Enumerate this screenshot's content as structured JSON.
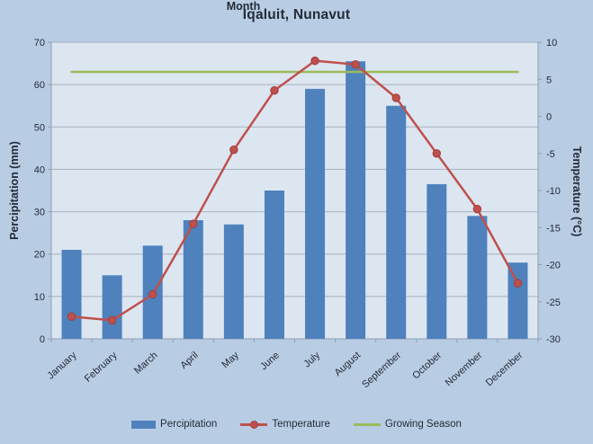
{
  "chart_data": {
    "type": "bar",
    "title": "Iqaluit, Nunavut",
    "categories": [
      "January",
      "February",
      "March",
      "April",
      "May",
      "June",
      "July",
      "August",
      "September",
      "October",
      "November",
      "December"
    ],
    "series": [
      {
        "name": "Percipitation",
        "type": "bar",
        "axis": "left",
        "values": [
          21,
          15,
          22,
          28,
          27,
          35,
          59,
          65.5,
          55,
          36.5,
          29,
          18
        ]
      },
      {
        "name": "Temperature",
        "type": "line",
        "axis": "right",
        "marker": "circle",
        "values": [
          -27,
          -27.5,
          -24,
          -14.5,
          -4.5,
          3.5,
          7.5,
          7,
          2.5,
          -5,
          -12.5,
          -22.5
        ]
      },
      {
        "name": "Growing Season",
        "type": "line",
        "axis": "right",
        "constant": 6
      }
    ],
    "left_axis": {
      "label": "Percipitation (mm)",
      "min": 0,
      "max": 70,
      "step": 10
    },
    "right_axis": {
      "label": "Temperature (°C)",
      "min": -30,
      "max": 10,
      "step": 5
    },
    "xlabel": "Month",
    "grid": true,
    "legend_position": "bottom"
  },
  "colors": {
    "background": "#b8cce4",
    "plot_background": "#dce6f1",
    "gridline": "#a5b0bf",
    "axis_line": "#8fa0b3",
    "text": "#252b38",
    "precipitation": "#4f81bd",
    "temperature": "#c0504d",
    "temperature_marker_edge": "#9e403d",
    "growing_season": "#9bbb59"
  }
}
